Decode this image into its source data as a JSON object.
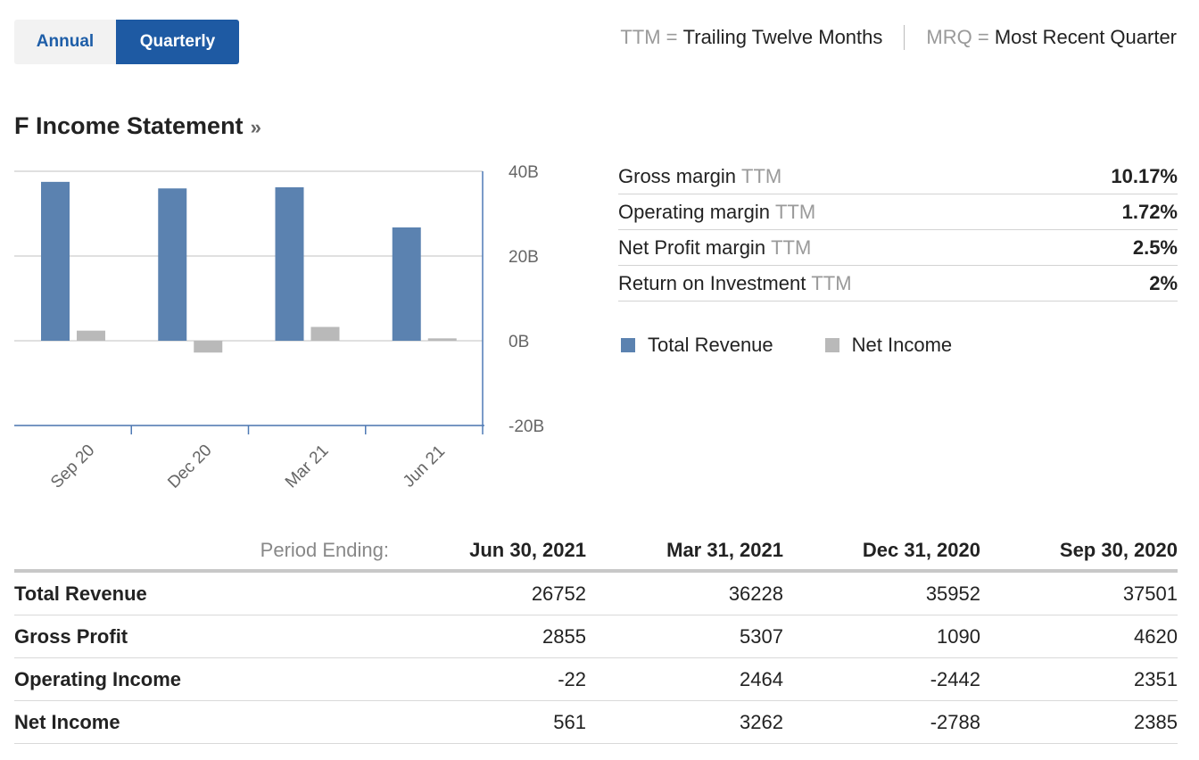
{
  "toggle": {
    "annual": "Annual",
    "quarterly": "Quarterly"
  },
  "notes": {
    "ttm_abbr": "TTM =",
    "ttm_full": "Trailing Twelve Months",
    "mrq_abbr": "MRQ =",
    "mrq_full": "Most Recent Quarter"
  },
  "title": "F Income Statement",
  "title_suffix": "»",
  "ratios": [
    {
      "label": "Gross margin",
      "suffix": "TTM",
      "value": "10.17%"
    },
    {
      "label": "Operating margin",
      "suffix": "TTM",
      "value": "1.72%"
    },
    {
      "label": "Net Profit margin",
      "suffix": "TTM",
      "value": "2.5%"
    },
    {
      "label": "Return on Investment",
      "suffix": "TTM",
      "value": "2%"
    }
  ],
  "legend": [
    {
      "name": "Total Revenue",
      "color": "#5b82b0"
    },
    {
      "name": "Net Income",
      "color": "#b9b9b9"
    }
  ],
  "chart_data": {
    "type": "bar",
    "categories": [
      "Sep 20",
      "Dec 20",
      "Mar 21",
      "Jun 21"
    ],
    "series": [
      {
        "name": "Total Revenue",
        "color": "#5b82b0",
        "values": [
          37.501,
          35.952,
          36.228,
          26.752
        ]
      },
      {
        "name": "Net Income",
        "color": "#b9b9b9",
        "values": [
          2.385,
          -2.788,
          3.262,
          0.561
        ]
      }
    ],
    "ylim": [
      -20,
      40
    ],
    "yticks": [
      {
        "value": 40,
        "label": "40B"
      },
      {
        "value": 20,
        "label": "20B"
      },
      {
        "value": 0,
        "label": "0B"
      },
      {
        "value": -20,
        "label": "-20B"
      }
    ],
    "grid": true,
    "legend": "right"
  },
  "table": {
    "period_label": "Period Ending:",
    "columns": [
      "Jun 30, 2021",
      "Mar 31, 2021",
      "Dec 31, 2020",
      "Sep 30, 2020"
    ],
    "rows": [
      {
        "label": "Total Revenue",
        "values": [
          "26752",
          "36228",
          "35952",
          "37501"
        ]
      },
      {
        "label": "Gross Profit",
        "values": [
          "2855",
          "5307",
          "1090",
          "4620"
        ]
      },
      {
        "label": "Operating Income",
        "values": [
          "-22",
          "2464",
          "-2442",
          "2351"
        ]
      },
      {
        "label": "Net Income",
        "values": [
          "561",
          "3262",
          "-2788",
          "2385"
        ]
      }
    ]
  }
}
